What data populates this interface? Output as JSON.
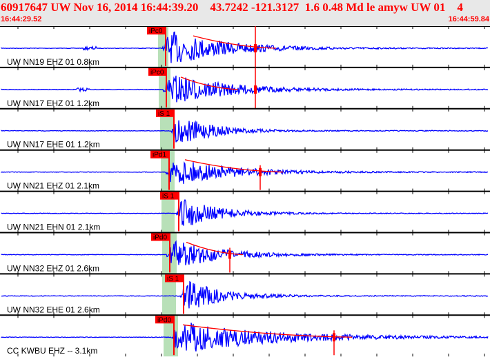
{
  "header": {
    "title": "60917647 UW Nov 16, 2014 16:44:39.20    43.7242 -121.3127  1.6 0.48 Md le amyw UW 01    4",
    "start_time": "16:44:29.52",
    "end_time": "16:44:59.84"
  },
  "colors": {
    "trace": "#0000ff",
    "pick": "#ff0000",
    "window": "#b8e0b8",
    "header_bg": "#e8e8e8"
  },
  "traces": [
    {
      "label": "UW NN19 EHZ 01  0.8km",
      "pick": "iPc0"
    },
    {
      "label": "UW NN17 EHZ 01  1.2km",
      "pick": "iPc0"
    },
    {
      "label": "UW NN17 EHE 01  1.2km",
      "pick": "iS 1"
    },
    {
      "label": "UW NN21 EHZ 01  2.1km",
      "pick": "iPd1"
    },
    {
      "label": "UW NN21 EHN 01  2.1km",
      "pick": "iS 1"
    },
    {
      "label": "UW NN32 EHZ 01  2.6km",
      "pick": "iPd0"
    },
    {
      "label": "UW NN32 EHE 01  2.6km",
      "pick": "iS 1"
    },
    {
      "label": "CC KWBU EHZ --  3.1km",
      "pick": "iPd0"
    }
  ]
}
